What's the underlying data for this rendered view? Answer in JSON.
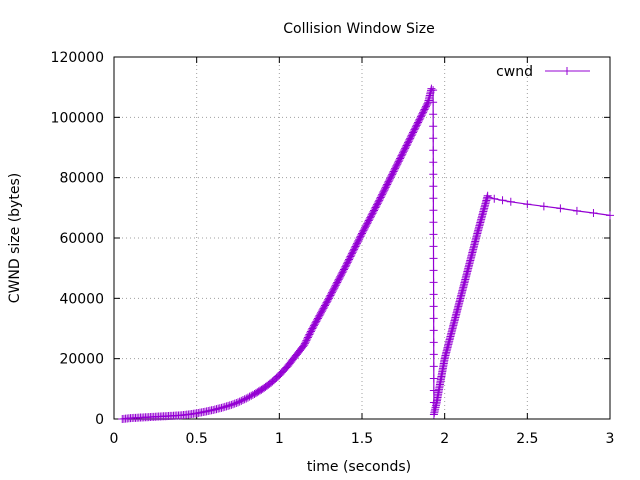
{
  "chart_data": {
    "type": "line",
    "title": "Collision Window Size",
    "xlabel": "time (seconds)",
    "ylabel": "CWND size (bytes)",
    "xlim": [
      0,
      3
    ],
    "ylim": [
      0,
      120000
    ],
    "x_ticks": [
      0,
      0.5,
      1,
      1.5,
      2,
      2.5,
      3
    ],
    "x_tick_labels": [
      "0",
      "0.5",
      "1",
      "1.5",
      "2",
      "2.5",
      "3"
    ],
    "y_ticks": [
      0,
      20000,
      40000,
      60000,
      80000,
      100000,
      120000
    ],
    "y_tick_labels": [
      "0",
      "20000",
      "40000",
      "60000",
      "80000",
      "100000",
      "120000"
    ],
    "grid": true,
    "legend_position": "top-right",
    "series": [
      {
        "name": "cwnd",
        "color": "#9400d3",
        "x": [
          0.05,
          0.1,
          0.2,
          0.3,
          0.4,
          0.45,
          0.5,
          0.55,
          0.6,
          0.65,
          0.7,
          0.75,
          0.8,
          0.85,
          0.9,
          0.95,
          1.0,
          1.05,
          1.1,
          1.15,
          1.2,
          1.3,
          1.4,
          1.5,
          1.6,
          1.7,
          1.8,
          1.9,
          1.92,
          1.93,
          1.935,
          1.95,
          2.0,
          2.1,
          2.2,
          2.26,
          2.3,
          2.35,
          2.4,
          2.5,
          2.6,
          2.7,
          2.8,
          2.9,
          3.0
        ],
        "y": [
          0,
          300,
          600,
          900,
          1200,
          1500,
          1900,
          2400,
          3000,
          3700,
          4500,
          5500,
          6800,
          8300,
          10000,
          12000,
          14500,
          17500,
          21000,
          24500,
          30000,
          40000,
          50500,
          61500,
          72000,
          83000,
          94000,
          105000,
          109500,
          109000,
          1500,
          5000,
          20000,
          41000,
          62000,
          74000,
          73000,
          72500,
          72000,
          71200,
          70500,
          69800,
          69000,
          68300,
          67500
        ]
      }
    ]
  }
}
